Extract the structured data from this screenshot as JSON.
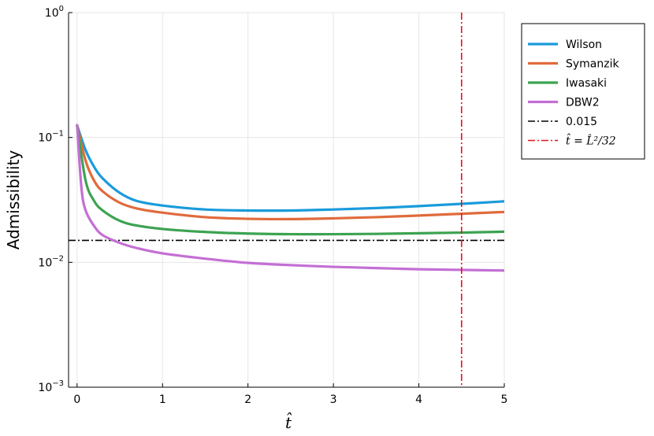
{
  "chart_data": {
    "type": "line",
    "title": "",
    "xlabel": "t̂",
    "ylabel": "Admissibility",
    "xlim": [
      -0.1,
      5.0
    ],
    "ylim": [
      0.001,
      1.0
    ],
    "yscale": "log",
    "grid": true,
    "legend_position": "top-right outside",
    "xticks": [
      {
        "value": 0,
        "label": "0"
      },
      {
        "value": 1,
        "label": "1"
      },
      {
        "value": 2,
        "label": "2"
      },
      {
        "value": 3,
        "label": "3"
      },
      {
        "value": 4,
        "label": "4"
      },
      {
        "value": 5,
        "label": "5"
      }
    ],
    "yticks": [
      {
        "value": 0.001,
        "base": "10",
        "exp": "−3"
      },
      {
        "value": 0.01,
        "base": "10",
        "exp": "−2"
      },
      {
        "value": 0.1,
        "base": "10",
        "exp": "−1"
      },
      {
        "value": 1,
        "base": "10",
        "exp": "0"
      }
    ],
    "series": [
      {
        "name": "Wilson",
        "color": "#1a9bdb",
        "x": [
          0,
          0.1,
          0.2,
          0.3,
          0.5,
          0.7,
          1.0,
          1.5,
          2.0,
          2.5,
          3.0,
          3.5,
          4.0,
          4.5,
          5.0
        ],
        "y": [
          0.125,
          0.079,
          0.058,
          0.047,
          0.036,
          0.031,
          0.0285,
          0.0265,
          0.026,
          0.026,
          0.0265,
          0.0272,
          0.0282,
          0.0294,
          0.0308
        ]
      },
      {
        "name": "Symanzik",
        "color": "#e06b3c",
        "x": [
          0,
          0.1,
          0.2,
          0.3,
          0.5,
          0.7,
          1.0,
          1.5,
          2.0,
          2.5,
          3.0,
          3.5,
          4.0,
          4.5,
          5.0
        ],
        "y": [
          0.125,
          0.065,
          0.045,
          0.037,
          0.03,
          0.027,
          0.025,
          0.023,
          0.0223,
          0.0222,
          0.0225,
          0.023,
          0.0237,
          0.0245,
          0.0253
        ]
      },
      {
        "name": "Iwasaki",
        "color": "#3ca351",
        "x": [
          0,
          0.1,
          0.2,
          0.3,
          0.5,
          0.7,
          1.0,
          1.5,
          2.0,
          2.5,
          3.0,
          3.5,
          4.0,
          4.5,
          5.0
        ],
        "y": [
          0.125,
          0.045,
          0.031,
          0.026,
          0.0215,
          0.0197,
          0.0185,
          0.0175,
          0.017,
          0.0168,
          0.0168,
          0.0169,
          0.0171,
          0.0173,
          0.0176
        ]
      },
      {
        "name": "DBW2",
        "color": "#c36fd4",
        "x": [
          0,
          0.05,
          0.1,
          0.2,
          0.3,
          0.5,
          0.7,
          1.0,
          1.5,
          2.0,
          2.5,
          3.0,
          3.5,
          4.0,
          4.5,
          5.0
        ],
        "y": [
          0.125,
          0.04,
          0.026,
          0.0195,
          0.0165,
          0.0143,
          0.013,
          0.0118,
          0.0107,
          0.0099,
          0.0095,
          0.0092,
          0.009,
          0.0088,
          0.0087,
          0.0086
        ]
      }
    ],
    "hlines": [
      {
        "name": "0.015",
        "y": 0.015,
        "color": "#000000",
        "style": "dashdot"
      }
    ],
    "vlines": [
      {
        "name": "t̂ = L̂²/32",
        "x": 4.5,
        "color": "#e8121e",
        "style": "dashdot"
      }
    ]
  }
}
